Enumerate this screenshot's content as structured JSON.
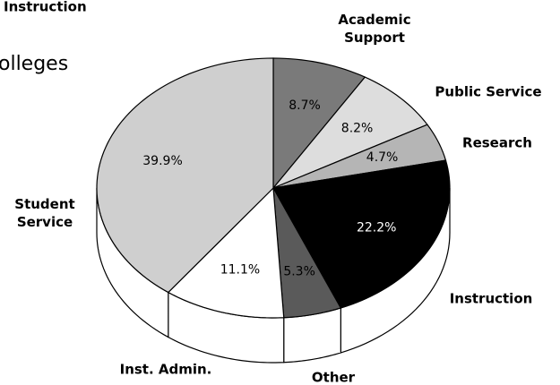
{
  "header_text": "Instruction",
  "chart_data": {
    "type": "pie",
    "title": "olleges",
    "categories": [
      "Academic Support",
      "Public Service",
      "Research",
      "Instruction",
      "Other",
      "Inst. Admin.",
      "Student Service"
    ],
    "values": [
      8.7,
      8.2,
      4.7,
      22.2,
      5.3,
      11.1,
      39.9
    ],
    "value_labels": [
      "8.7%",
      "8.2%",
      "4.7%",
      "22.2%",
      "5.3%",
      "11.1%",
      "39.9%"
    ],
    "colors": [
      "#7a7a7a",
      "#dddddd",
      "#b5b5b5",
      "#000000",
      "#5a5a5a",
      "#ffffff",
      "#cfcfcf"
    ]
  }
}
